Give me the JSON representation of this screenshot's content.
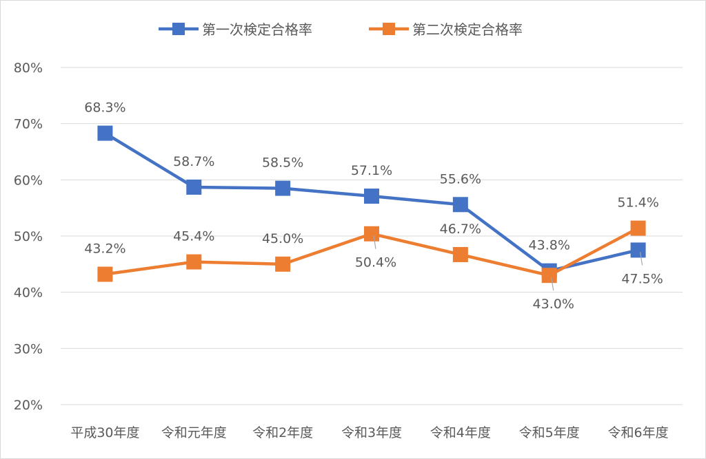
{
  "chart_data": {
    "type": "line",
    "title": "",
    "xlabel": "",
    "ylabel": "",
    "categories": [
      "平成30年度",
      "令和元年度",
      "令和2年度",
      "令和3年度",
      "令和4年度",
      "令和5年度",
      "令和6年度"
    ],
    "ylim": [
      20,
      80
    ],
    "yticks": [
      20,
      30,
      40,
      50,
      60,
      70,
      80
    ],
    "ytick_labels": [
      "20%",
      "30%",
      "40%",
      "50%",
      "60%",
      "70%",
      "80%"
    ],
    "grid": true,
    "legend_position": "top",
    "series": [
      {
        "name": "第一次検定合格率",
        "color": "#4472C4",
        "marker": "square",
        "values": [
          68.3,
          58.7,
          58.5,
          57.1,
          55.6,
          43.8,
          47.5
        ],
        "labels": [
          "68.3%",
          "58.7%",
          "58.5%",
          "57.1%",
          "55.6%",
          "43.8%",
          "47.5%"
        ],
        "label_positions": [
          "above",
          "above",
          "above",
          "above",
          "above",
          "above",
          "below"
        ]
      },
      {
        "name": "第二次検定合格率",
        "color": "#ED7D31",
        "marker": "square",
        "values": [
          43.2,
          45.4,
          45.0,
          50.4,
          46.7,
          43.0,
          51.4
        ],
        "labels": [
          "43.2%",
          "45.4%",
          "45.0%",
          "50.4%",
          "46.7%",
          "43.0%",
          "51.4%"
        ],
        "label_positions": [
          "above",
          "above",
          "above",
          "below",
          "above",
          "below",
          "above"
        ]
      }
    ]
  }
}
